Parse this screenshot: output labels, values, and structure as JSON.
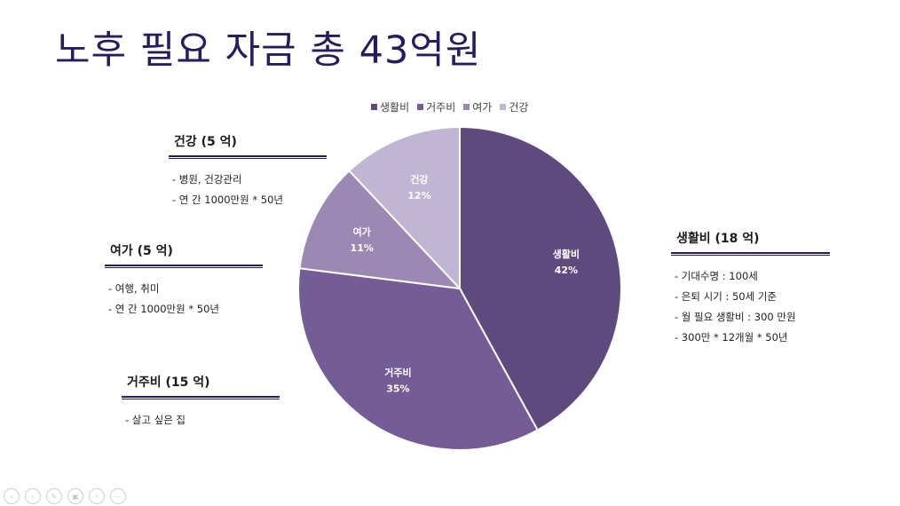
{
  "slide": {
    "title": "노후 필요 자금 총 43억원"
  },
  "chart_data": {
    "type": "pie",
    "categories": [
      "생활비",
      "거주비",
      "여가",
      "건강"
    ],
    "values": [
      42,
      35,
      11,
      12
    ],
    "value_labels": [
      "42%",
      "35%",
      "11%",
      "12%"
    ],
    "colors": [
      "#5e4a7d",
      "#745c97",
      "#9b89b4",
      "#c0b6d3"
    ],
    "legend_position": "top"
  },
  "notes": {
    "health": {
      "head": "건강 (5 억)",
      "lines": [
        "- 병원, 건강관리",
        "- 연 간 1000만원 * 50년"
      ]
    },
    "leisure": {
      "head": "여가 (5 억)",
      "lines": [
        "- 여행, 취미",
        "- 연 간 1000만원 * 50년"
      ]
    },
    "housing": {
      "head": "거주비 (15 억)",
      "lines": [
        "- 살고 싶은 집"
      ]
    },
    "living": {
      "head": "생활비 (18 억)",
      "lines": [
        "- 기대수명 : 100세",
        "- 은퇴 시기 : 50세 기준",
        "- 월 필요 생활비 : 300 만원",
        "- 300만 * 12개월 * 50년"
      ]
    }
  },
  "nav": {
    "icons": [
      "prev-icon",
      "next-icon",
      "pen-icon",
      "slides-icon",
      "zoom-icon",
      "more-icon"
    ],
    "glyphs": [
      "‹",
      "›",
      "✎",
      "▣",
      "⌕",
      "⋯"
    ]
  }
}
